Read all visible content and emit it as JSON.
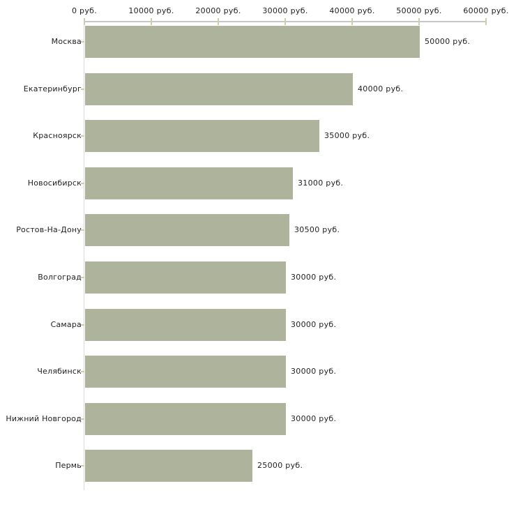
{
  "chart_data": {
    "type": "bar",
    "orientation": "horizontal",
    "title": "",
    "categories": [
      "Москва",
      "Екатеринбург",
      "Красноярск",
      "Новосибирск",
      "Ростов-На-Дону",
      "Волгоград",
      "Самара",
      "Челябинск",
      "Нижний Новгород",
      "Пермь"
    ],
    "values": [
      50000,
      40000,
      35000,
      31000,
      30500,
      30000,
      30000,
      30000,
      30000,
      25000
    ],
    "value_labels": [
      "50000 руб.",
      "40000 руб.",
      "35000 руб.",
      "31000 руб.",
      "30500 руб.",
      "30000 руб.",
      "30000 руб.",
      "30000 руб.",
      "30000 руб.",
      "25000 руб."
    ],
    "unit": "руб.",
    "x_axis": {
      "position": "top",
      "range": [
        0,
        60000
      ],
      "tick_values": [
        0,
        10000,
        20000,
        30000,
        40000,
        50000,
        60000
      ],
      "tick_labels": [
        "0 руб.",
        "10000 руб.",
        "20000 руб.",
        "30000 руб.",
        "40000 руб.",
        "50000 руб.",
        "60000 руб."
      ]
    },
    "grid": false,
    "legend": null,
    "colors": {
      "bar": "#aeb49b",
      "axis_line": "#c3c7c7",
      "category_axis_line": "#d9d9d9",
      "tick_mark": "#cdd0a2",
      "text": "#1f1f1f",
      "background": "#ffffff"
    }
  }
}
